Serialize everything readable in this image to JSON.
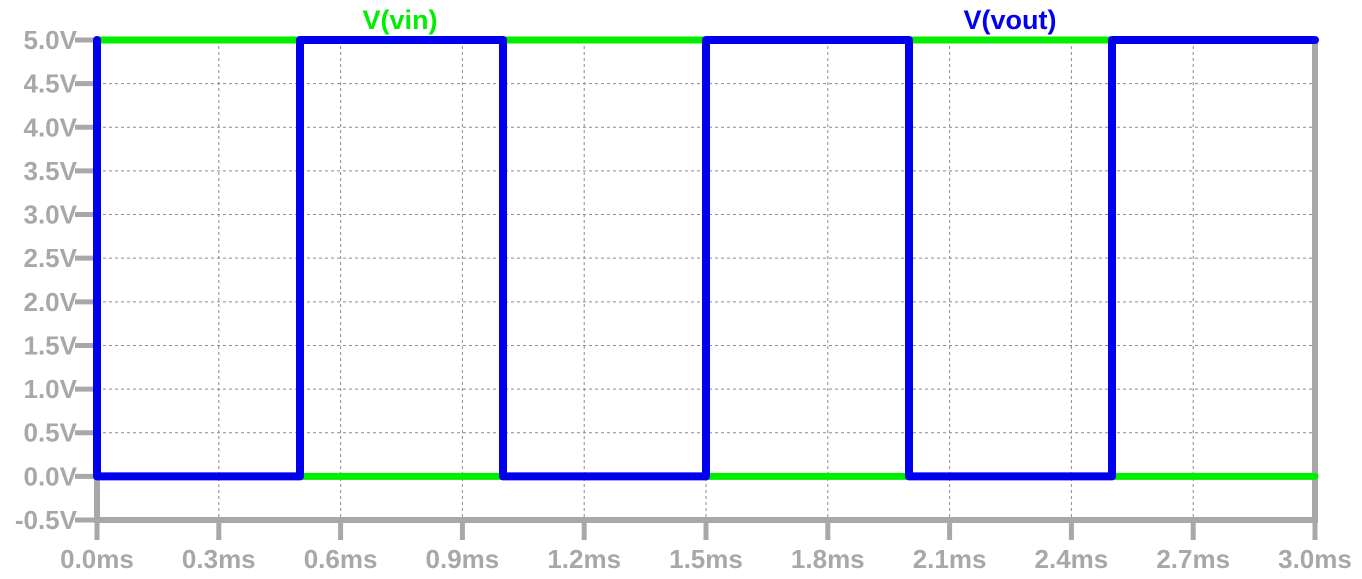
{
  "chart_data": {
    "type": "line",
    "title": "",
    "xlabel": "",
    "ylabel": "",
    "xlim": [
      0,
      3.0
    ],
    "ylim": [
      -0.5,
      5.0
    ],
    "x_unit": "ms",
    "y_unit": "V",
    "grid": true,
    "grid_style": "dashed",
    "legend_placement": "top",
    "x_ticks": [
      "0.0ms",
      "0.3ms",
      "0.6ms",
      "0.9ms",
      "1.2ms",
      "1.5ms",
      "1.8ms",
      "2.1ms",
      "2.4ms",
      "2.7ms",
      "3.0ms"
    ],
    "x_tick_values": [
      0,
      0.3,
      0.6,
      0.9,
      1.2,
      1.5,
      1.8,
      2.1,
      2.4,
      2.7,
      3.0
    ],
    "y_ticks": [
      "5.0V",
      "4.5V",
      "4.0V",
      "3.5V",
      "3.0V",
      "2.5V",
      "2.0V",
      "1.5V",
      "1.0V",
      "0.5V",
      "0.0V",
      "-0.5V"
    ],
    "y_tick_values": [
      5.0,
      4.5,
      4.0,
      3.5,
      3.0,
      2.5,
      2.0,
      1.5,
      1.0,
      0.5,
      0.0,
      -0.5
    ],
    "series": [
      {
        "name": "V(vin)",
        "color": "#00ee00",
        "x": [
          0,
          0.5,
          0.5,
          1.0,
          1.0,
          1.5,
          1.5,
          2.0,
          2.0,
          2.5,
          2.5,
          3.0
        ],
        "y": [
          5,
          5,
          0,
          0,
          5,
          5,
          0,
          0,
          5,
          5,
          0,
          0
        ]
      },
      {
        "name": "V(vout)",
        "color": "#0000ee",
        "x": [
          0,
          0,
          0.5,
          0.5,
          1.0,
          1.0,
          1.5,
          1.5,
          2.0,
          2.0,
          2.5,
          2.5,
          3.0
        ],
        "y": [
          5,
          0,
          0,
          5,
          5,
          0,
          0,
          5,
          5,
          0,
          0,
          5,
          5
        ]
      }
    ]
  }
}
